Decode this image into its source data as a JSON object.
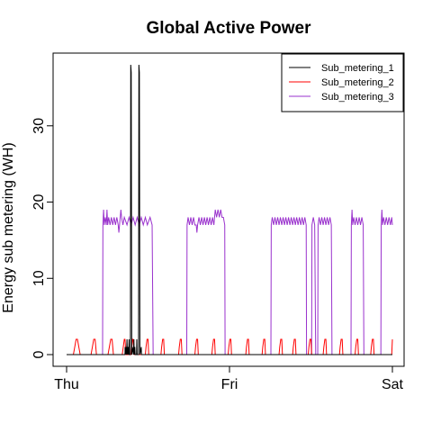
{
  "chart_data": {
    "type": "line",
    "title": "Global Active Power",
    "xlabel": "",
    "ylabel": "Energy sub metering (WH)",
    "x_ticks": [
      "Thu",
      "Fri",
      "Sat"
    ],
    "x_unit": "hours since Thu 00:00",
    "xlim": [
      0,
      48
    ],
    "y_ticks": [
      0,
      10,
      20,
      30
    ],
    "ylim": [
      0,
      38
    ],
    "grid": false,
    "legend_position": "top-right",
    "series": [
      {
        "name": "Sub_metering_1",
        "color": "#000000",
        "points": [
          [
            0,
            0
          ],
          [
            8.6,
            0
          ],
          [
            8.62,
            1
          ],
          [
            8.66,
            0
          ],
          [
            8.78,
            1
          ],
          [
            8.82,
            0
          ],
          [
            8.9,
            2
          ],
          [
            8.95,
            0
          ],
          [
            9.0,
            1
          ],
          [
            9.05,
            0
          ],
          [
            9.1,
            1
          ],
          [
            9.14,
            0
          ],
          [
            9.2,
            2
          ],
          [
            9.24,
            0
          ],
          [
            9.4,
            0
          ],
          [
            9.45,
            38
          ],
          [
            9.52,
            37
          ],
          [
            9.6,
            0
          ],
          [
            9.8,
            1
          ],
          [
            9.84,
            0
          ],
          [
            9.92,
            2
          ],
          [
            9.96,
            0
          ],
          [
            10.05,
            1
          ],
          [
            10.1,
            0
          ],
          [
            10.3,
            0
          ],
          [
            10.34,
            2
          ],
          [
            10.38,
            0
          ],
          [
            10.6,
            0
          ],
          [
            10.65,
            38
          ],
          [
            10.72,
            37
          ],
          [
            10.8,
            0
          ],
          [
            11.0,
            1
          ],
          [
            11.03,
            0
          ],
          [
            48,
            0
          ]
        ]
      },
      {
        "name": "Sub_metering_2",
        "color": "#ff0000",
        "points": [
          [
            0,
            0
          ],
          [
            1.0,
            0
          ],
          [
            1.2,
            1
          ],
          [
            1.4,
            2
          ],
          [
            1.6,
            2
          ],
          [
            1.8,
            1
          ],
          [
            2.0,
            0
          ],
          [
            3.6,
            0
          ],
          [
            3.8,
            1
          ],
          [
            4.0,
            2
          ],
          [
            4.2,
            2
          ],
          [
            4.4,
            0
          ],
          [
            6.1,
            0
          ],
          [
            6.3,
            1
          ],
          [
            6.5,
            2
          ],
          [
            6.7,
            2
          ],
          [
            6.9,
            0
          ],
          [
            8.2,
            0
          ],
          [
            8.35,
            1
          ],
          [
            8.5,
            2
          ],
          [
            8.6,
            2
          ],
          [
            8.75,
            0
          ],
          [
            9.5,
            0
          ],
          [
            9.6,
            1
          ],
          [
            9.7,
            2
          ],
          [
            9.8,
            2
          ],
          [
            9.95,
            0
          ],
          [
            11.6,
            0
          ],
          [
            11.7,
            1
          ],
          [
            11.85,
            2
          ],
          [
            12.0,
            2
          ],
          [
            12.1,
            0
          ],
          [
            13.9,
            0
          ],
          [
            14.0,
            1
          ],
          [
            14.15,
            2
          ],
          [
            14.3,
            2
          ],
          [
            14.4,
            0
          ],
          [
            16.5,
            0
          ],
          [
            16.6,
            1
          ],
          [
            16.75,
            2
          ],
          [
            16.9,
            2
          ],
          [
            17.0,
            0
          ],
          [
            18.9,
            0
          ],
          [
            19.0,
            1
          ],
          [
            19.15,
            2
          ],
          [
            19.3,
            2
          ],
          [
            19.4,
            0
          ],
          [
            21.4,
            0
          ],
          [
            21.5,
            1
          ],
          [
            21.65,
            2
          ],
          [
            21.8,
            2
          ],
          [
            21.9,
            0
          ],
          [
            23.8,
            0
          ],
          [
            23.9,
            1
          ],
          [
            24.05,
            2
          ],
          [
            24.2,
            2
          ],
          [
            24.3,
            0
          ],
          [
            26.4,
            0
          ],
          [
            26.5,
            1
          ],
          [
            26.65,
            2
          ],
          [
            26.8,
            2
          ],
          [
            26.9,
            0
          ],
          [
            28.8,
            0
          ],
          [
            28.9,
            1
          ],
          [
            29.05,
            2
          ],
          [
            29.2,
            2
          ],
          [
            29.3,
            0
          ],
          [
            31.3,
            0
          ],
          [
            31.4,
            1
          ],
          [
            31.55,
            2
          ],
          [
            31.7,
            2
          ],
          [
            31.8,
            0
          ],
          [
            33.3,
            0
          ],
          [
            33.4,
            1
          ],
          [
            33.55,
            2
          ],
          [
            33.7,
            2
          ],
          [
            33.8,
            0
          ],
          [
            35.6,
            0
          ],
          [
            35.7,
            1
          ],
          [
            35.85,
            2
          ],
          [
            36.0,
            2
          ],
          [
            36.1,
            0
          ],
          [
            37.8,
            0
          ],
          [
            37.9,
            1
          ],
          [
            38.05,
            2
          ],
          [
            38.2,
            2
          ],
          [
            38.3,
            0
          ],
          [
            40.2,
            0
          ],
          [
            40.3,
            1
          ],
          [
            40.45,
            2
          ],
          [
            40.6,
            2
          ],
          [
            40.7,
            0
          ],
          [
            42.5,
            0
          ],
          [
            42.6,
            1
          ],
          [
            42.75,
            2
          ],
          [
            42.9,
            2
          ],
          [
            43.0,
            0
          ],
          [
            44.8,
            0
          ],
          [
            44.9,
            1
          ],
          [
            45.05,
            2
          ],
          [
            45.2,
            2
          ],
          [
            45.3,
            0
          ],
          [
            47.9,
            0
          ],
          [
            48.0,
            2
          ]
        ]
      },
      {
        "name": "Sub_metering_3",
        "color": "#9a32cd",
        "points": [
          [
            0,
            0
          ],
          [
            5.3,
            0
          ],
          [
            5.35,
            17
          ],
          [
            5.45,
            19
          ],
          [
            5.55,
            17
          ],
          [
            5.7,
            18
          ],
          [
            5.85,
            17
          ],
          [
            5.95,
            19
          ],
          [
            6.05,
            17
          ],
          [
            6.2,
            18
          ],
          [
            6.4,
            17
          ],
          [
            6.6,
            18
          ],
          [
            6.8,
            17
          ],
          [
            7.0,
            18
          ],
          [
            7.2,
            17
          ],
          [
            7.4,
            18
          ],
          [
            7.6,
            17
          ],
          [
            7.7,
            16
          ],
          [
            7.8,
            17
          ],
          [
            8.0,
            19
          ],
          [
            8.1,
            18
          ],
          [
            8.3,
            17
          ],
          [
            8.5,
            18
          ],
          [
            8.9,
            17
          ],
          [
            9.2,
            18
          ],
          [
            9.5,
            17
          ],
          [
            9.8,
            18
          ],
          [
            10.1,
            17
          ],
          [
            10.4,
            18
          ],
          [
            10.7,
            17
          ],
          [
            11.0,
            18
          ],
          [
            11.3,
            17
          ],
          [
            11.6,
            18
          ],
          [
            11.9,
            17
          ],
          [
            12.3,
            18
          ],
          [
            12.6,
            17
          ],
          [
            12.75,
            0
          ],
          [
            17.7,
            0
          ],
          [
            17.75,
            17
          ],
          [
            17.9,
            18
          ],
          [
            18.1,
            17
          ],
          [
            18.3,
            18
          ],
          [
            18.5,
            17
          ],
          [
            18.7,
            18
          ],
          [
            18.9,
            17
          ],
          [
            19.1,
            17
          ],
          [
            19.2,
            16
          ],
          [
            19.3,
            17
          ],
          [
            19.5,
            18
          ],
          [
            19.7,
            17
          ],
          [
            19.9,
            18
          ],
          [
            20.1,
            17
          ],
          [
            20.3,
            18
          ],
          [
            20.5,
            17
          ],
          [
            20.7,
            18
          ],
          [
            20.9,
            17
          ],
          [
            21.1,
            18
          ],
          [
            21.3,
            17
          ],
          [
            21.5,
            18
          ],
          [
            21.7,
            17
          ],
          [
            21.9,
            19
          ],
          [
            22.1,
            18
          ],
          [
            22.3,
            19
          ],
          [
            22.5,
            18
          ],
          [
            22.7,
            19
          ],
          [
            22.9,
            18
          ],
          [
            23.1,
            18
          ],
          [
            23.3,
            17
          ],
          [
            23.35,
            0
          ],
          [
            30.1,
            0
          ],
          [
            30.15,
            17
          ],
          [
            30.3,
            18
          ],
          [
            30.5,
            17
          ],
          [
            30.7,
            18
          ],
          [
            30.9,
            17
          ],
          [
            31.1,
            18
          ],
          [
            31.3,
            17
          ],
          [
            31.5,
            18
          ],
          [
            31.7,
            17
          ],
          [
            31.9,
            18
          ],
          [
            32.1,
            17
          ],
          [
            32.3,
            18
          ],
          [
            32.5,
            17
          ],
          [
            32.7,
            18
          ],
          [
            32.9,
            17
          ],
          [
            33.1,
            18
          ],
          [
            33.3,
            17
          ],
          [
            33.5,
            18
          ],
          [
            33.7,
            17
          ],
          [
            33.9,
            18
          ],
          [
            34.1,
            17
          ],
          [
            34.3,
            18
          ],
          [
            34.5,
            17
          ],
          [
            34.7,
            18
          ],
          [
            34.9,
            17
          ],
          [
            35.1,
            18
          ],
          [
            35.3,
            17
          ],
          [
            35.35,
            0
          ],
          [
            36.1,
            0
          ],
          [
            36.15,
            17
          ],
          [
            36.35,
            18
          ],
          [
            36.55,
            17
          ],
          [
            36.7,
            0
          ],
          [
            37.0,
            0
          ],
          [
            37.05,
            17
          ],
          [
            37.2,
            18
          ],
          [
            37.4,
            17
          ],
          [
            37.6,
            18
          ],
          [
            37.8,
            17
          ],
          [
            38.0,
            18
          ],
          [
            38.2,
            17
          ],
          [
            38.4,
            18
          ],
          [
            38.6,
            17
          ],
          [
            38.8,
            18
          ],
          [
            39.0,
            17
          ],
          [
            39.1,
            0
          ],
          [
            41.9,
            0
          ],
          [
            41.95,
            17
          ],
          [
            42.05,
            19
          ],
          [
            42.15,
            17
          ],
          [
            42.3,
            18
          ],
          [
            42.5,
            17
          ],
          [
            42.7,
            18
          ],
          [
            42.9,
            17
          ],
          [
            43.1,
            18
          ],
          [
            43.3,
            17
          ],
          [
            43.5,
            18
          ],
          [
            43.7,
            17
          ],
          [
            43.8,
            0
          ],
          [
            46.3,
            0
          ],
          [
            46.35,
            17
          ],
          [
            46.45,
            19
          ],
          [
            46.55,
            17
          ],
          [
            46.7,
            18
          ],
          [
            46.9,
            17
          ],
          [
            47.1,
            18
          ],
          [
            47.3,
            17
          ],
          [
            47.5,
            18
          ],
          [
            47.7,
            17
          ],
          [
            47.9,
            18
          ],
          [
            48,
            17
          ]
        ]
      }
    ]
  }
}
